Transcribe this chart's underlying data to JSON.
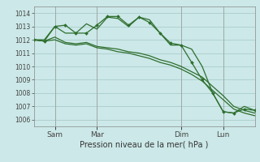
{
  "background_color": "#cce8e8",
  "grid_color": "#aacccc",
  "line_color": "#2d6e2d",
  "xlabel": "Pression niveau de la mer( hPa )",
  "ylim": [
    1005.5,
    1014.5
  ],
  "yticks": [
    1006,
    1007,
    1008,
    1009,
    1010,
    1011,
    1012,
    1013,
    1014
  ],
  "x_tick_labels": [
    "Sam",
    "Mar",
    "Dim",
    "Lun"
  ],
  "x_tick_positions": [
    12,
    36,
    84,
    108
  ],
  "xlim": [
    0,
    126
  ],
  "series1_x": [
    0,
    6,
    12,
    18,
    24,
    30,
    36,
    42,
    48,
    54,
    60,
    66,
    72,
    78,
    84,
    90,
    96,
    102,
    108,
    114,
    120,
    126
  ],
  "series1": [
    1012.0,
    1012.0,
    1013.0,
    1012.5,
    1012.5,
    1013.2,
    1012.8,
    1013.7,
    1013.6,
    1013.0,
    1013.7,
    1013.5,
    1012.5,
    1011.6,
    1011.6,
    1011.3,
    1010.0,
    1008.0,
    1006.6,
    1006.5,
    1007.0,
    1006.7
  ],
  "series2_x": [
    0,
    6,
    12,
    18,
    24,
    30,
    36,
    42,
    48,
    54,
    60,
    66,
    72,
    78,
    84,
    90,
    96,
    102,
    108,
    114,
    120,
    126
  ],
  "series2": [
    1012.0,
    1011.9,
    1012.2,
    1011.8,
    1011.7,
    1011.8,
    1011.5,
    1011.4,
    1011.3,
    1011.1,
    1011.0,
    1010.8,
    1010.5,
    1010.3,
    1010.0,
    1009.6,
    1009.2,
    1008.5,
    1007.8,
    1007.0,
    1006.7,
    1006.5
  ],
  "series3_x": [
    0,
    6,
    12,
    18,
    24,
    30,
    36,
    42,
    48,
    54,
    60,
    66,
    72,
    78,
    84,
    90,
    96,
    102,
    108,
    114,
    120,
    126
  ],
  "series3": [
    1012.0,
    1011.9,
    1012.0,
    1011.7,
    1011.6,
    1011.7,
    1011.4,
    1011.3,
    1011.1,
    1011.0,
    1010.8,
    1010.6,
    1010.3,
    1010.1,
    1009.8,
    1009.4,
    1008.9,
    1008.2,
    1007.5,
    1006.8,
    1006.5,
    1006.3
  ],
  "series4_x": [
    0,
    6,
    12,
    18,
    24,
    30,
    36,
    42,
    48,
    54,
    60,
    66,
    72,
    78,
    84,
    90,
    96,
    102,
    108,
    114,
    120,
    126
  ],
  "series4": [
    1012.0,
    1011.9,
    1013.0,
    1013.1,
    1012.5,
    1012.5,
    1013.1,
    1013.75,
    1013.75,
    1013.1,
    1013.7,
    1013.3,
    1012.5,
    1011.75,
    1011.6,
    1010.3,
    1009.0,
    1008.0,
    1006.6,
    1006.5,
    1006.8,
    1006.7
  ]
}
